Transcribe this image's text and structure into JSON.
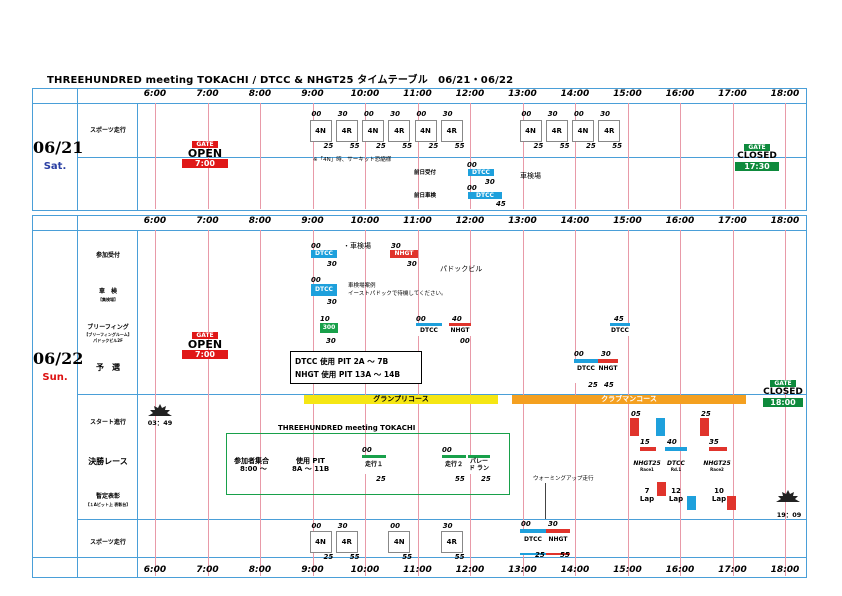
{
  "title": "THREEHUNDRED meeting TOKACHI / DTCC & NHGT25 タイムテーブル　06/21・06/22",
  "times": [
    "6:00",
    "7:00",
    "8:00",
    "9:00",
    "10:00",
    "11:00",
    "12:00",
    "13:00",
    "14:00",
    "15:00",
    "16:00",
    "17:00",
    "18:00"
  ],
  "day1": {
    "date": "06/21",
    "day": "Sat.",
    "rows": [
      "スポーツ走行"
    ],
    "gate_open": {
      "top": "GATE",
      "mid": "OPEN",
      "time": "7:00"
    },
    "gate_closed": {
      "top": "GATE",
      "mid": "CLOSED",
      "time": "17:30"
    },
    "sport": [
      {
        "s": "00",
        "l": "4N",
        "e": "25"
      },
      {
        "s": "30",
        "l": "4R",
        "e": "55"
      },
      {
        "s": "00",
        "l": "4N",
        "e": "25"
      },
      {
        "s": "30",
        "l": "4R",
        "e": "55"
      },
      {
        "s": "00",
        "l": "4N",
        "e": "25"
      },
      {
        "s": "30",
        "l": "4R",
        "e": "55"
      },
      {
        "s": "00",
        "l": "4N",
        "e": "25"
      },
      {
        "s": "30",
        "l": "4R",
        "e": "55"
      },
      {
        "s": "00",
        "l": "4N",
        "e": "25"
      },
      {
        "s": "30",
        "l": "4R",
        "e": "55"
      }
    ],
    "note": "※「4N」時、サーキット恐縮様",
    "pre_reception": "前日受付",
    "pre_inspection": "前日車検",
    "pre_label": "DTCC",
    "inspect_note": "車検場",
    "n_00a": "00",
    "n_30a": "30",
    "n_00b": "00",
    "n_45b": "45"
  },
  "day2": {
    "date": "06/22",
    "day": "Sun.",
    "rows": {
      "reception": "参加受付",
      "inspection": "車　検",
      "inspection_sub": "【集検場】",
      "briefing": "ブリーフィング",
      "briefing_sub": "【ブリーフィングルーム】",
      "briefing_sub2": "パドックビル2F",
      "qualifying": "予　選",
      "start": "スタート進行",
      "final": "決勝レース",
      "award": "暫定表彰",
      "award_sub": "【１Aピット上 表彰台】",
      "sport": "スポーツ走行"
    },
    "gate_open": {
      "top": "GATE",
      "mid": "OPEN",
      "time": "7:00"
    },
    "gate_closed": {
      "top": "GATE",
      "mid": "CLOSED",
      "time": "18:00"
    },
    "sunrise": "03：49",
    "sunset": "19：09",
    "reception": {
      "dtcc": "DTCC",
      "nhgt": "NHGT",
      "n1": "00",
      "n2": "30",
      "n3": "30",
      "n4": "30",
      "inspect": "・車検場",
      "paddock": "パドックビル"
    },
    "inspection": {
      "label": "DTCC",
      "s": "00",
      "e": "30",
      "note1": "車検場案例",
      "note2": "イーストパドックで待機してください。"
    },
    "briefing": {
      "a": "300",
      "an1": "10",
      "an2": "30",
      "b": "DTCC",
      "bn": "00",
      "c": "NHGT",
      "cn1": "40",
      "cn2": "00",
      "d": "DTCC",
      "dn": "45"
    },
    "pit_info": [
      "DTCC 使用 PIT 2A ～ 7B",
      "NHGT 使用 PIT 13A ～ 14B"
    ],
    "qualifying": {
      "dtcc": "DTCC",
      "nhgt": "NHGT",
      "n1": "00",
      "n2": "30",
      "n3": "25",
      "n4": "45"
    },
    "courses": [
      "グランプリコース",
      "クラブマンコース"
    ],
    "meeting": "THREEHUNDRED meeting TOKACHI",
    "meet_assembly": "参加者集合",
    "meet_time": "8:00 ～",
    "meet_pit": "使用 PIT",
    "meet_pit_range": "8A ～ 11B",
    "run1": "走行１",
    "run2": "走行２",
    "parade": "パレード ラン",
    "run_nums": {
      "r1a": "00",
      "r1b": "25",
      "r2a": "00",
      "r2b": "55",
      "r3b": "25"
    },
    "warmup": "ウォーミングアップ走行",
    "races": [
      {
        "name": "NHGT25",
        "sub": "Race1",
        "laps": "7",
        "unit": "Lap",
        "n1": "05",
        "n2": "15"
      },
      {
        "name": "DTCC",
        "sub": "Rd.1",
        "laps": "12",
        "unit": "Lap",
        "n1": "40",
        "n2": ""
      },
      {
        "name": "NHGT25",
        "sub": "Race2",
        "laps": "10",
        "unit": "Lap",
        "n1": "25",
        "n2": "35"
      }
    ],
    "sport": [
      {
        "s": "00",
        "l": "4N",
        "e": "25"
      },
      {
        "s": "30",
        "l": "4R",
        "e": "55"
      },
      {
        "s": "00",
        "l": "4N",
        "e": "55"
      },
      {
        "s": "30",
        "l": "4R",
        "e": "55"
      }
    ],
    "sport_race": {
      "dtcc": "DTCC",
      "nhgt": "NHGT",
      "n1": "00",
      "n2": "30",
      "n3": "25",
      "n4": "55"
    }
  },
  "colors": {
    "panel": "#4a9fd8",
    "grid": "#e89aa8",
    "dtcc": "#1ea0dc",
    "nhgt": "#e0342c",
    "green": "#18a04a",
    "gp": "#f5e614",
    "club": "#f4a020",
    "gate_red": "#e01818",
    "gate_green": "#0e8a3c"
  }
}
